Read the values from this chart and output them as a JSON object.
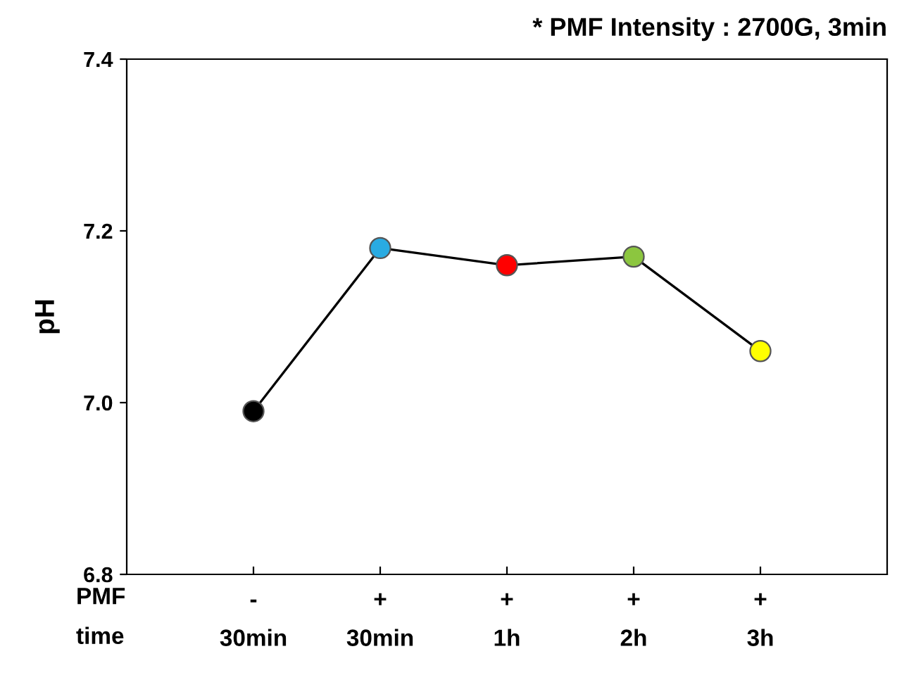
{
  "chart_data": {
    "type": "line",
    "title": "* PMF Intensity : 2700G, 3min",
    "ylabel": "pH",
    "categories": [
      "-\n30min",
      "+\n30min",
      "+\n1h",
      "+\n2h",
      "+\n3h"
    ],
    "annotations": [
      "PMF",
      "time"
    ],
    "series": [
      {
        "color": "#000000",
        "colors": [
          "#000000",
          "#29abe2",
          "#ff0000",
          "#8cc63f",
          "#ffff00"
        ],
        "values": [
          6.99,
          7.18,
          7.16,
          7.17,
          7.06
        ]
      }
    ],
    "ylim": [
      6.8,
      7.4
    ],
    "yticks": [
      {
        "value": 6.8,
        "label": "6.8"
      },
      {
        "value": 7.0,
        "label": "7.0"
      },
      {
        "value": 7.2,
        "label": "7.2"
      },
      {
        "value": 7.4,
        "label": "7.4"
      }
    ],
    "marker": "circle",
    "line_style": "solid",
    "grid": false
  }
}
